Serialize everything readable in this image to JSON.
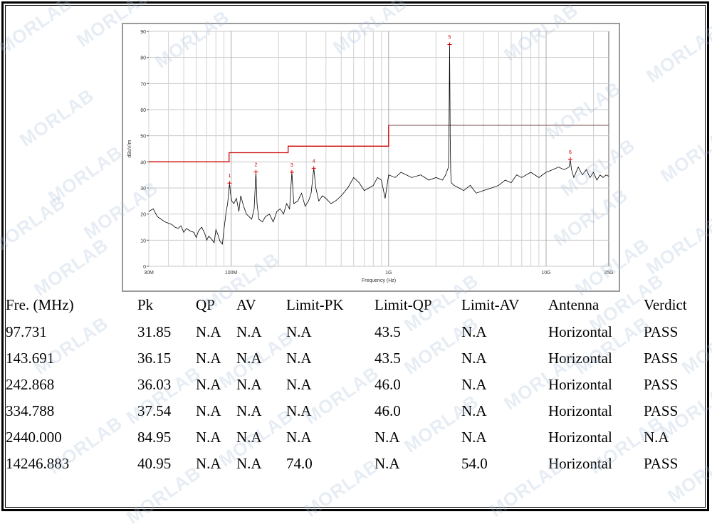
{
  "chart_data": {
    "type": "line",
    "ylabel": "dBuV/m",
    "xlabel": "Frequency (Hz)",
    "xscale": "log",
    "xlim": [
      30,
      25000
    ],
    "ylim": [
      0,
      90
    ],
    "y_ticks": [
      0,
      10,
      20,
      30,
      40,
      50,
      60,
      70,
      80,
      90
    ],
    "x_ticks": [
      {
        "value": 30,
        "label": "30M"
      },
      {
        "value": 100,
        "label": "100M"
      },
      {
        "value": 1000,
        "label": "1G"
      },
      {
        "value": 10000,
        "label": "10G"
      },
      {
        "value": 25000,
        "label": "25G"
      }
    ],
    "grid": true,
    "series": [
      {
        "color": "#cc0000",
        "x": [
          30,
          97,
          97,
          230,
          230,
          1000,
          1000,
          25000
        ],
        "values": [
          40,
          40,
          43.5,
          43.5,
          46,
          46,
          54,
          54
        ]
      },
      {
        "color": "#888888",
        "x": [
          1000,
          25000
        ],
        "values": [
          54,
          54
        ]
      },
      {
        "color": "#000000",
        "x": [
          30,
          32,
          34,
          36,
          38,
          40,
          42,
          44,
          46,
          48,
          50,
          52,
          55,
          58,
          60,
          62,
          65,
          68,
          70,
          72,
          75,
          78,
          80,
          82,
          85,
          88,
          90,
          93,
          95,
          96,
          97.7,
          99,
          101,
          104,
          108,
          112,
          115,
          120,
          125,
          130,
          135,
          140,
          143.7,
          146,
          150,
          158,
          165,
          175,
          185,
          195,
          205,
          215,
          225,
          235,
          242.9,
          250,
          265,
          280,
          295,
          310,
          322,
          334.8,
          345,
          360,
          380,
          400,
          430,
          460,
          500,
          550,
          600,
          650,
          700,
          750,
          800,
          850,
          900,
          950,
          1000,
          1100,
          1200,
          1400,
          1600,
          1800,
          2000,
          2200,
          2300,
          2400,
          2420,
          2440,
          2460,
          2480,
          2500,
          2600,
          2800,
          3000,
          3300,
          3600,
          4000,
          4500,
          5000,
          5500,
          6000,
          6500,
          7000,
          8000,
          9000,
          10000,
          11000,
          12000,
          13000,
          14000,
          14246.9,
          14500,
          15000,
          16000,
          17000,
          18000,
          19000,
          20000,
          21000,
          22000,
          23000,
          24000,
          25000
        ],
        "values": [
          21,
          22,
          19,
          18,
          17,
          16.5,
          16,
          15,
          14.5,
          15.5,
          13,
          14.5,
          13.5,
          13,
          11,
          13.5,
          15,
          12.5,
          10,
          11.5,
          10.5,
          9,
          14,
          12.5,
          9.5,
          8.5,
          14,
          21,
          24,
          27,
          31.85,
          28,
          25,
          24,
          26,
          21,
          27,
          23,
          20,
          19,
          18,
          22,
          36.15,
          24,
          18,
          17,
          19,
          20,
          17,
          21,
          22,
          20,
          24,
          22,
          36.03,
          24,
          25,
          28,
          23,
          25,
          28,
          37.54,
          30,
          25,
          27,
          26,
          24,
          25,
          27,
          30,
          34,
          32,
          29,
          30,
          31,
          34,
          33,
          26,
          35,
          34,
          36,
          34,
          35,
          33,
          34,
          33,
          35,
          38,
          55,
          84.95,
          50,
          36,
          32,
          31,
          30,
          29,
          31,
          28,
          29,
          30,
          31,
          33,
          32,
          35,
          34,
          36,
          34,
          36,
          37,
          38,
          37,
          38,
          40.95,
          37,
          34,
          38,
          35,
          37,
          34,
          36,
          33,
          35,
          34,
          35,
          34.5
        ]
      }
    ],
    "markers": [
      {
        "label": "1",
        "x": 97.731,
        "y": 31.85
      },
      {
        "label": "2",
        "x": 143.691,
        "y": 36.15
      },
      {
        "label": "3",
        "x": 242.868,
        "y": 36.03
      },
      {
        "label": "4",
        "x": 334.788,
        "y": 37.54
      },
      {
        "label": "5",
        "x": 2440.0,
        "y": 84.95
      },
      {
        "label": "6",
        "x": 14246.883,
        "y": 40.95
      }
    ]
  },
  "watermark": "MORLAB",
  "table": {
    "headers": [
      "Fre. (MHz)",
      "Pk",
      "QP",
      "AV",
      "Limit-PK",
      "Limit-QP",
      "Limit-AV",
      "Antenna",
      "Verdict"
    ],
    "rows": [
      [
        "97.731",
        "31.85",
        "N.A",
        "N.A",
        "N.A",
        "43.5",
        "N.A",
        "Horizontal",
        "PASS"
      ],
      [
        "143.691",
        "36.15",
        "N.A",
        "N.A",
        "N.A",
        "43.5",
        "N.A",
        "Horizontal",
        "PASS"
      ],
      [
        "242.868",
        "36.03",
        "N.A",
        "N.A",
        "N.A",
        "46.0",
        "N.A",
        "Horizontal",
        "PASS"
      ],
      [
        "334.788",
        "37.54",
        "N.A",
        "N.A",
        "N.A",
        "46.0",
        "N.A",
        "Horizontal",
        "PASS"
      ],
      [
        "2440.000",
        "84.95",
        "N.A",
        "N.A",
        "N.A",
        "N.A",
        "N.A",
        "Horizontal",
        "N.A"
      ],
      [
        "14246.883",
        "40.95",
        "N.A",
        "N.A",
        "74.0",
        "N.A",
        "54.0",
        "Horizontal",
        "PASS"
      ]
    ]
  }
}
